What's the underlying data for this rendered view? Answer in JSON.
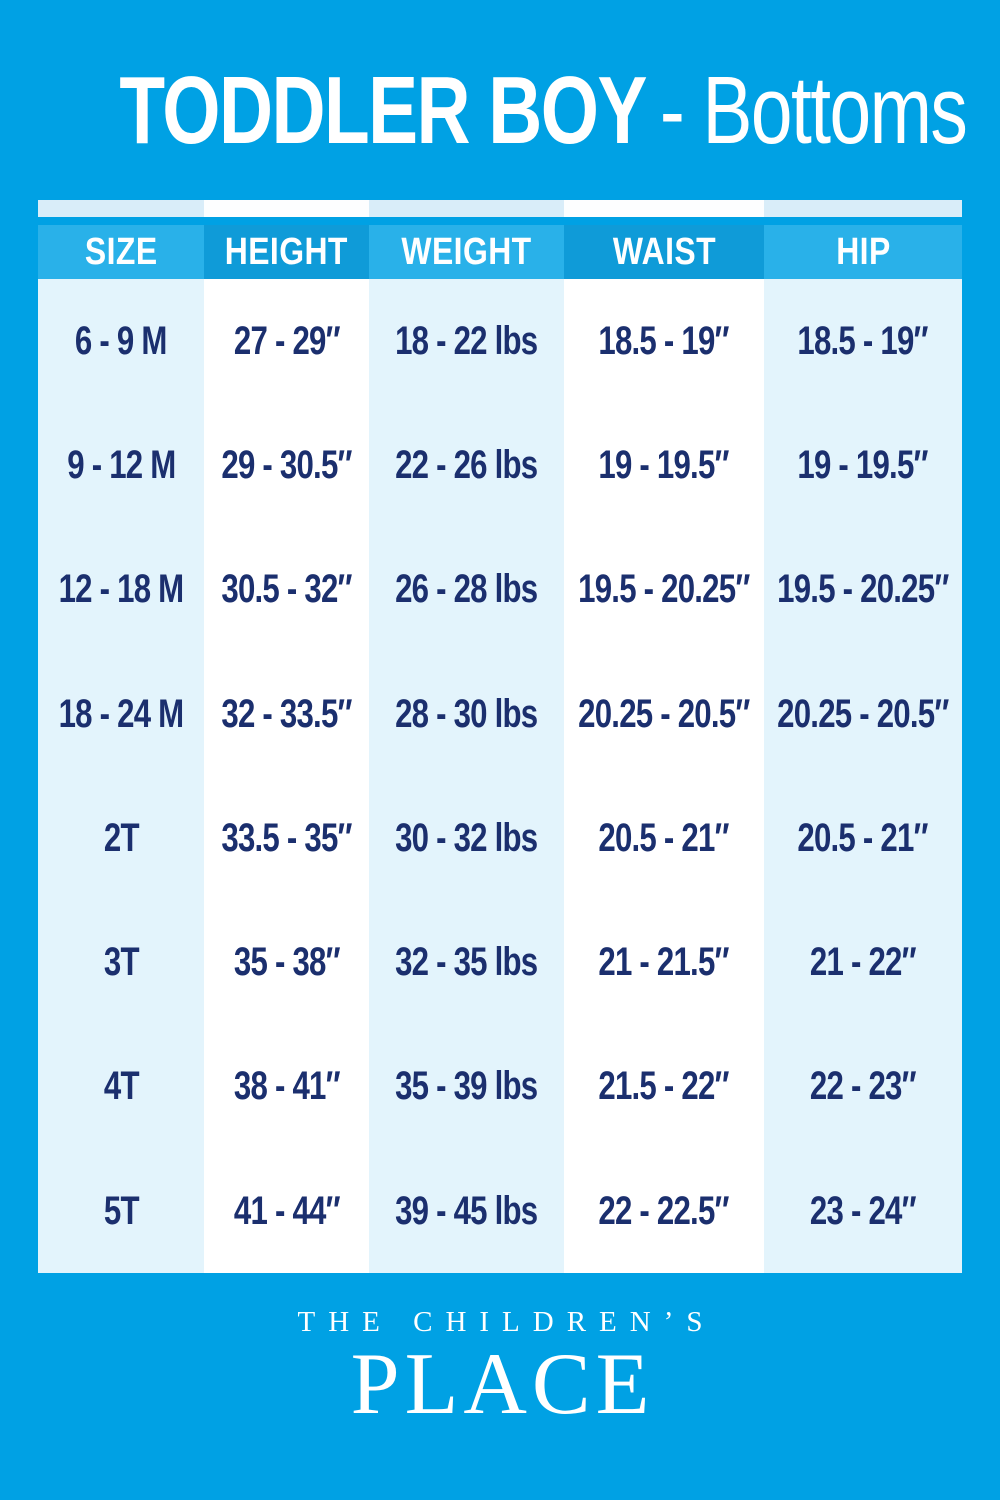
{
  "title": {
    "main": "TODDLER BOY",
    "sub": "- Bottoms"
  },
  "colors": {
    "background": "#00A1E4",
    "header_light": "#29B1E9",
    "header_dark": "#0F9BD8",
    "column_light": "#E3F4FC",
    "column_white": "#FFFFFF",
    "body_text": "#1B2F6E",
    "header_text": "#FFFFFF"
  },
  "chart_data": {
    "type": "table",
    "title": "TODDLER BOY - Bottoms",
    "columns": [
      "SIZE",
      "HEIGHT",
      "WEIGHT",
      "WAIST",
      "HIP"
    ],
    "rows": [
      [
        "6 - 9 M",
        "27 - 29″",
        "18 - 22 lbs",
        "18.5 - 19″",
        "18.5 - 19″"
      ],
      [
        "9 - 12 M",
        "29 - 30.5″",
        "22 - 26 lbs",
        "19 - 19.5″",
        "19 - 19.5″"
      ],
      [
        "12 - 18 M",
        "30.5 - 32″",
        "26 - 28 lbs",
        "19.5 - 20.25″",
        "19.5 - 20.25″"
      ],
      [
        "18 - 24 M",
        "32 - 33.5″",
        "28 - 30 lbs",
        "20.25 - 20.5″",
        "20.25 - 20.5″"
      ],
      [
        "2T",
        "33.5 - 35″",
        "30 - 32 lbs",
        "20.5 - 21″",
        "20.5 - 21″"
      ],
      [
        "3T",
        "35 - 38″",
        "32 - 35 lbs",
        "21 - 21.5″",
        "21 - 22″"
      ],
      [
        "4T",
        "38 - 41″",
        "35 - 39 lbs",
        "21.5 - 22″",
        "22 - 23″"
      ],
      [
        "5T",
        "41 - 44″",
        "39 - 45 lbs",
        "22 - 22.5″",
        "23 - 24″"
      ]
    ]
  },
  "footer": {
    "brand_top": "THE CHILDREN’S",
    "brand_bottom": "PLACE"
  }
}
